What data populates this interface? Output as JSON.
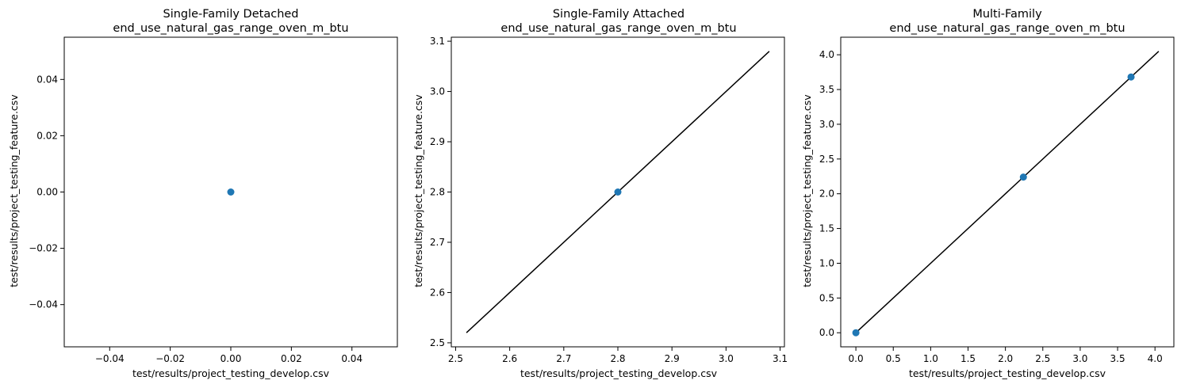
{
  "chart_data": [
    {
      "type": "scatter",
      "title_line1": "Single-Family Detached",
      "title_line2": "end_use_natural_gas_range_oven_m_btu",
      "xlabel": "test/results/project_testing_develop.csv",
      "ylabel": "test/results/project_testing_feature.csv",
      "xlim": [
        -0.055,
        0.055
      ],
      "ylim": [
        -0.055,
        0.055
      ],
      "xticks": [
        -0.04,
        -0.02,
        0.0,
        0.02,
        0.04
      ],
      "xtick_labels": [
        "−0.04",
        "−0.02",
        "0.00",
        "0.02",
        "0.04"
      ],
      "yticks": [
        -0.04,
        -0.02,
        0.0,
        0.02,
        0.04
      ],
      "ytick_labels": [
        "−0.04",
        "−0.02",
        "0.00",
        "0.02",
        "0.04"
      ],
      "points": [
        {
          "x": 0.0,
          "y": 0.0
        }
      ],
      "reference_line": null,
      "grid": false,
      "colors": {
        "points": "#1f77b4",
        "line": "#000000"
      }
    },
    {
      "type": "scatter",
      "title_line1": "Single-Family Attached",
      "title_line2": "end_use_natural_gas_range_oven_m_btu",
      "xlabel": "test/results/project_testing_develop.csv",
      "ylabel": "test/results/project_testing_feature.csv",
      "xlim": [
        2.492,
        3.108
      ],
      "ylim": [
        2.492,
        3.108
      ],
      "xticks": [
        2.5,
        2.6,
        2.7,
        2.8,
        2.9,
        3.0,
        3.1
      ],
      "xtick_labels": [
        "2.5",
        "2.6",
        "2.7",
        "2.8",
        "2.9",
        "3.0",
        "3.1"
      ],
      "yticks": [
        2.5,
        2.6,
        2.7,
        2.8,
        2.9,
        3.0,
        3.1
      ],
      "ytick_labels": [
        "2.5",
        "2.6",
        "2.7",
        "2.8",
        "2.9",
        "3.0",
        "3.1"
      ],
      "points": [
        {
          "x": 2.8,
          "y": 2.8
        }
      ],
      "reference_line": [
        [
          2.52,
          2.52
        ],
        [
          3.08,
          3.08
        ]
      ],
      "grid": false,
      "colors": {
        "points": "#1f77b4",
        "line": "#000000"
      }
    },
    {
      "type": "scatter",
      "title_line1": "Multi-Family",
      "title_line2": "end_use_natural_gas_range_oven_m_btu",
      "xlabel": "test/results/project_testing_develop.csv",
      "ylabel": "test/results/project_testing_feature.csv",
      "xlim": [
        -0.2025,
        4.2525
      ],
      "ylim": [
        -0.2025,
        4.2525
      ],
      "xticks": [
        0.0,
        0.5,
        1.0,
        1.5,
        2.0,
        2.5,
        3.0,
        3.5,
        4.0
      ],
      "xtick_labels": [
        "0.0",
        "0.5",
        "1.0",
        "1.5",
        "2.0",
        "2.5",
        "3.0",
        "3.5",
        "4.0"
      ],
      "yticks": [
        0.0,
        0.5,
        1.0,
        1.5,
        2.0,
        2.5,
        3.0,
        3.5,
        4.0
      ],
      "ytick_labels": [
        "0.0",
        "0.5",
        "1.0",
        "1.5",
        "2.0",
        "2.5",
        "3.0",
        "3.5",
        "4.0"
      ],
      "points": [
        {
          "x": 0.0,
          "y": 0.0
        },
        {
          "x": 2.24,
          "y": 2.24
        },
        {
          "x": 3.68,
          "y": 3.68
        }
      ],
      "reference_line": [
        [
          0.0,
          0.0
        ],
        [
          4.05,
          4.05
        ]
      ],
      "grid": false,
      "colors": {
        "points": "#1f77b4",
        "line": "#000000"
      }
    }
  ]
}
